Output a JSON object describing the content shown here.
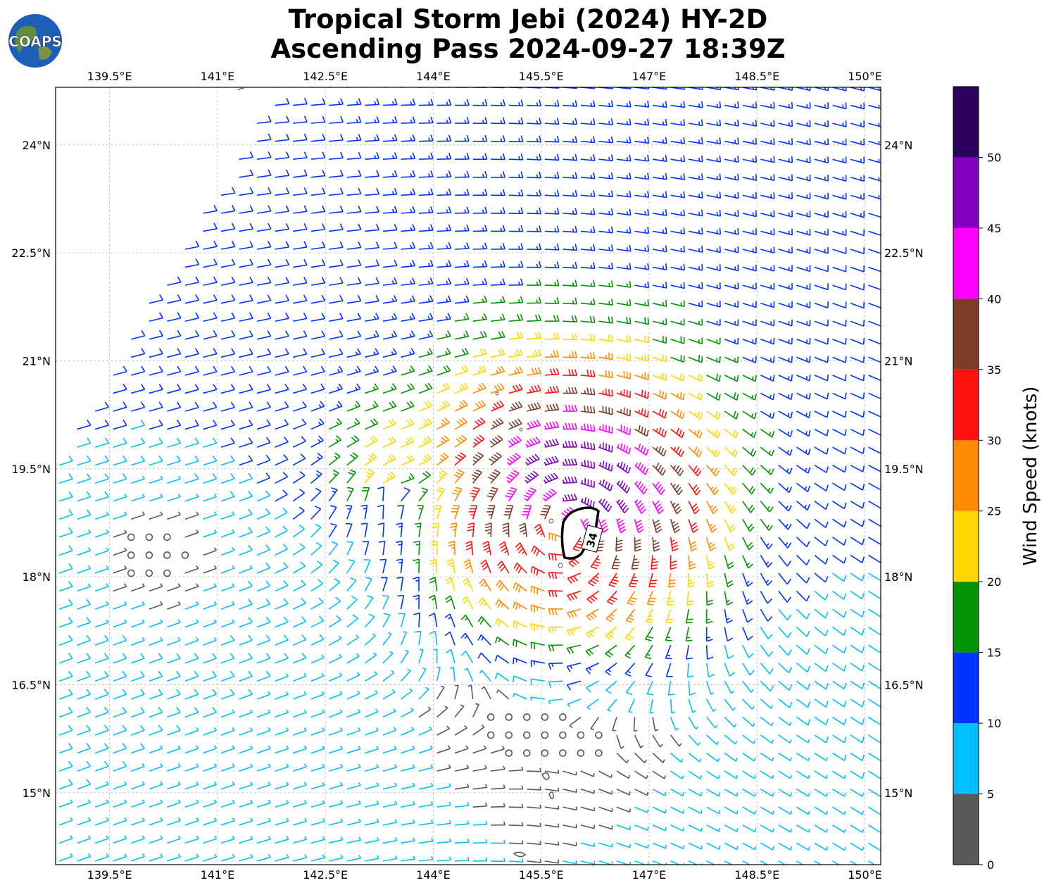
{
  "title": "Tropical Storm Jebi (2024) HY-2D",
  "subtitle": "Ascending Pass 2024-09-27 18:39Z",
  "logo_text": "COAPS",
  "chart_data": {
    "type": "wind-barbs",
    "x_axis": {
      "ticks": [
        139.5,
        141,
        142.5,
        144,
        145.5,
        147,
        148.5,
        150
      ],
      "tick_labels": [
        "139.5°E",
        "141°E",
        "142.5°E",
        "144°E",
        "145.5°E",
        "147°E",
        "148.5°E",
        "150°E"
      ],
      "range": [
        138.75,
        150.22
      ]
    },
    "y_axis": {
      "ticks": [
        15,
        16.5,
        18,
        19.5,
        21,
        22.5,
        24
      ],
      "tick_labels": [
        "15°N",
        "16.5°N",
        "18°N",
        "19.5°N",
        "21°N",
        "22.5°N",
        "24°N"
      ],
      "range": [
        14.0,
        24.8
      ]
    },
    "grid": true,
    "colorbar": {
      "label": "Wind Speed (knots)",
      "ticks": [
        0,
        5,
        10,
        15,
        20,
        25,
        30,
        35,
        40,
        45,
        50
      ],
      "colors": [
        "#595959",
        "#00bfff",
        "#0033ff",
        "#009400",
        "#ffd700",
        "#ff8c00",
        "#ff1111",
        "#7d3b28",
        "#ff00ff",
        "#8000c0",
        "#2a005c"
      ],
      "range": [
        0,
        55
      ]
    },
    "storm": {
      "center": [
        145.85,
        18.75
      ],
      "contour_label": "34"
    }
  }
}
